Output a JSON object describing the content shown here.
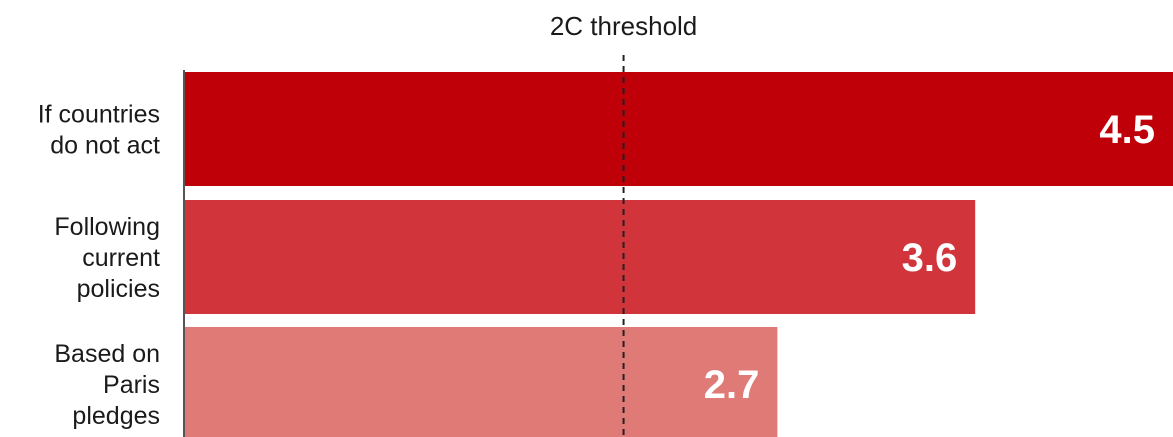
{
  "chart_data": {
    "type": "bar",
    "orientation": "horizontal",
    "categories": [
      [
        "If countries",
        "do not act"
      ],
      [
        "Following",
        "current",
        "policies"
      ],
      [
        "Based on",
        "Paris",
        "pledges"
      ]
    ],
    "values": [
      4.5,
      3.6,
      2.7
    ],
    "value_labels": [
      "4.5",
      "3.6",
      "2.7"
    ],
    "colors": [
      "#c00008",
      "#d1343b",
      "#e07a77"
    ],
    "xlim": [
      0,
      4.5
    ],
    "grid": false,
    "reference_line": {
      "value": 2,
      "label": "2C threshold",
      "style": "dashed"
    }
  }
}
